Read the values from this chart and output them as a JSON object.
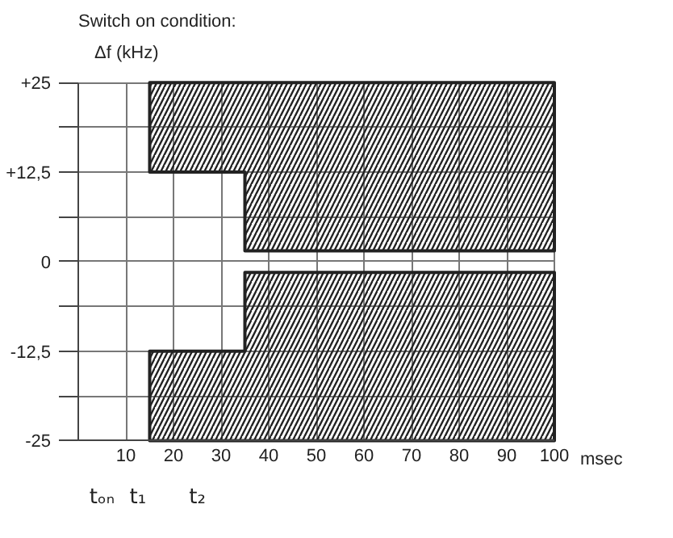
{
  "chart_data": {
    "type": "area",
    "title": "Switch on condition:",
    "ylabel": "Δf (kHz)",
    "xlabel": "msec",
    "xlim": [
      0,
      100
    ],
    "xticks": [
      10,
      20,
      30,
      40,
      50,
      60,
      70,
      80,
      90,
      100
    ],
    "ylim": [
      -25,
      25
    ],
    "yticks": [
      {
        "value": -25,
        "label": "-25"
      },
      {
        "value": -18.75,
        "label": null
      },
      {
        "value": -12.5,
        "label": "-12,5"
      },
      {
        "value": -6.25,
        "label": null
      },
      {
        "value": 0,
        "label": "0"
      },
      {
        "value": 6.25,
        "label": null
      },
      {
        "value": 12.5,
        "label": "+12,5"
      },
      {
        "value": 18.75,
        "label": null
      },
      {
        "value": 25,
        "label": "+25"
      }
    ],
    "grid": true,
    "series": [
      {
        "color": "#222222",
        "x": [
          15,
          15,
          35,
          35,
          100,
          100
        ],
        "values": [
          25,
          12.5,
          12.5,
          1.5,
          1.5,
          25
        ]
      },
      {
        "color": "#222222",
        "x": [
          15,
          15,
          35,
          35,
          100,
          100
        ],
        "values": [
          -25,
          -12.5,
          -12.5,
          -1.5,
          -1.5,
          -25
        ]
      }
    ],
    "annotations": [
      "tₒₙ",
      "t₁",
      "t₂"
    ]
  }
}
